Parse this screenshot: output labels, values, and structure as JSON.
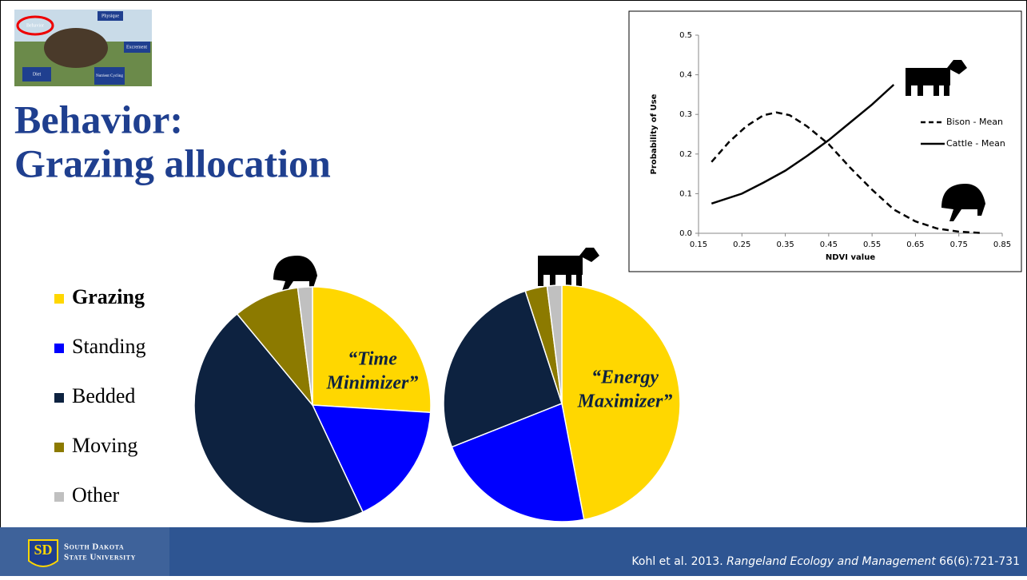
{
  "slide": {
    "title_lines": [
      "Behavior:",
      "Grazing allocation"
    ],
    "thumbnail_labels": [
      "Behavior",
      "Physique",
      "Excrement",
      "Diet",
      "Nutrient Cycling"
    ],
    "annotations": [
      "“Time",
      "Minimizer”",
      "“Energy",
      "Maximizer”"
    ],
    "university": [
      "South Dakota",
      "State University"
    ],
    "citation": {
      "before": "Kohl et al. 2013. ",
      "journal": "Rangeland Ecology and Management",
      "after": " 66(6):721-731"
    }
  },
  "chart_data": [
    {
      "type": "pie",
      "categories": [
        "Grazing",
        "Standing",
        "Bedded",
        "Moving",
        "Other"
      ],
      "colors": [
        "#ffd700",
        "#0000ff",
        "#0d2240",
        "#8c7a00",
        "#c0c0c0"
      ],
      "values": [
        26,
        17,
        46,
        9,
        2
      ]
    },
    {
      "type": "pie",
      "values": [
        47,
        22,
        26,
        3,
        2
      ]
    },
    {
      "type": "line",
      "xlabel": "NDVI value",
      "ylabel": "Probability of Use",
      "xlim": [
        0.15,
        0.85
      ],
      "ylim": [
        0,
        0.5
      ],
      "xticks": [
        0.15,
        0.25,
        0.35,
        0.45,
        0.55,
        0.65,
        0.75,
        0.85
      ],
      "yticks": [
        {
          "value": 0,
          "label": "0.0"
        },
        {
          "value": 0.1,
          "label": "0.1"
        },
        {
          "value": 0.2,
          "label": "0.2"
        },
        {
          "value": 0.3,
          "label": "0.3"
        },
        {
          "value": 0.4,
          "label": "0.4"
        },
        {
          "value": 0.5,
          "label": "0.5"
        }
      ],
      "series": [
        {
          "name": "Bison - Mean",
          "color": "#000000",
          "dash": true,
          "x": [
            0.18,
            0.22,
            0.26,
            0.3,
            0.33,
            0.36,
            0.4,
            0.45,
            0.5,
            0.55,
            0.6,
            0.65,
            0.7,
            0.75,
            0.8
          ],
          "values": [
            0.18,
            0.23,
            0.27,
            0.298,
            0.305,
            0.298,
            0.27,
            0.225,
            0.165,
            0.11,
            0.06,
            0.03,
            0.012,
            0.004,
            0.001
          ]
        },
        {
          "name": "Cattle - Mean",
          "color": "#000000",
          "dash": false,
          "x": [
            0.18,
            0.25,
            0.3,
            0.35,
            0.4,
            0.45,
            0.5,
            0.55,
            0.6
          ],
          "values": [
            0.075,
            0.1,
            0.128,
            0.158,
            0.195,
            0.235,
            0.28,
            0.325,
            0.375
          ]
        }
      ]
    }
  ]
}
